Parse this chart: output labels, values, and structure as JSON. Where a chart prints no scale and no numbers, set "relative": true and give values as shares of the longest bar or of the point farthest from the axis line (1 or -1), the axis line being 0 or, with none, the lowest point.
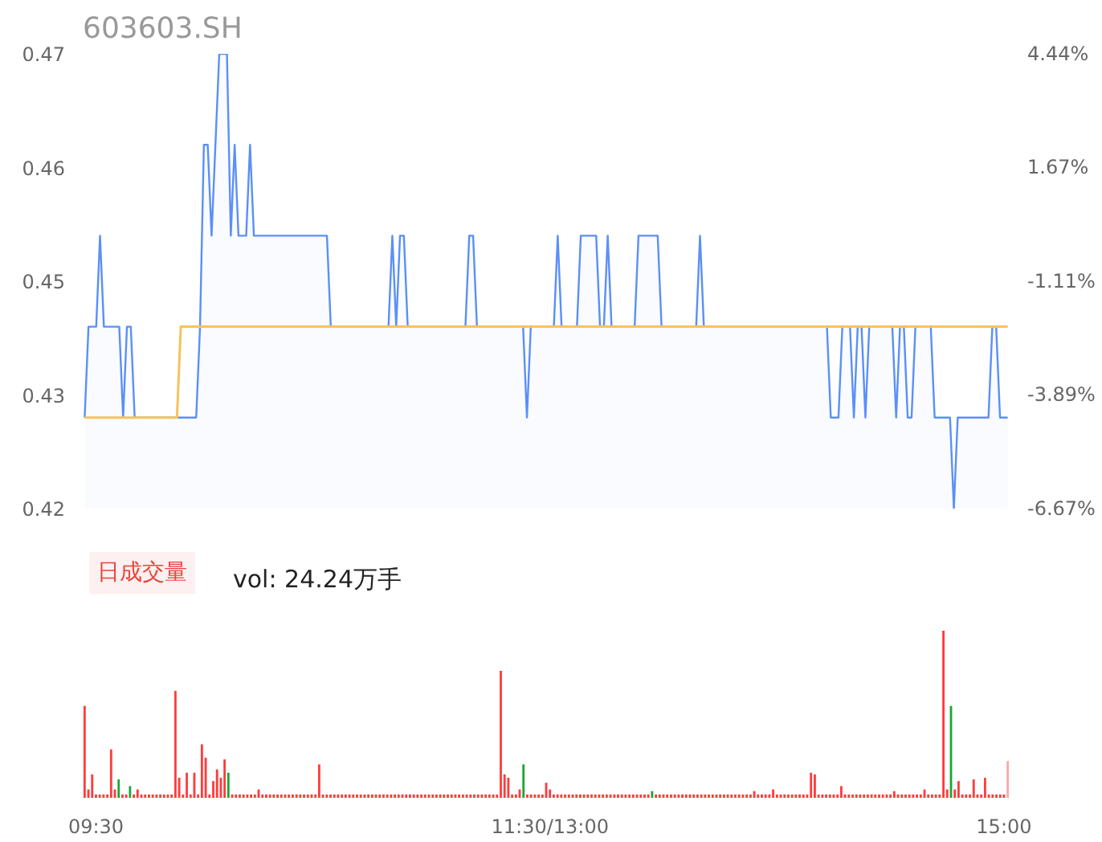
{
  "chart_data": [
    {
      "type": "line",
      "title": "603603.SH",
      "categories": [
        null,
        null,
        null,
        null,
        null,
        null,
        null,
        null,
        null,
        null,
        null,
        null,
        null,
        null,
        null,
        null,
        null,
        null,
        null,
        null,
        null,
        null,
        null,
        null,
        null,
        null,
        null,
        null,
        null,
        null,
        null,
        null,
        null,
        null,
        null,
        null,
        null,
        null,
        null,
        null,
        null,
        null,
        null,
        null,
        null,
        null,
        null,
        null,
        null,
        null,
        null,
        null,
        null,
        null,
        null,
        null,
        null,
        null,
        null,
        null,
        null,
        null,
        null,
        null,
        null,
        null,
        null,
        null,
        null,
        null,
        null,
        null,
        null,
        null,
        null,
        null,
        null,
        null,
        null,
        null,
        null,
        null,
        null,
        null,
        null,
        null,
        null,
        null,
        null,
        null,
        null,
        null,
        null,
        null,
        null,
        null,
        null,
        null,
        null,
        null,
        null,
        null,
        null,
        null,
        null,
        null,
        null,
        null,
        null,
        null,
        null,
        null,
        null,
        null,
        null,
        null,
        null,
        null,
        null,
        null,
        null,
        null,
        null,
        null,
        null,
        null,
        null,
        null,
        null,
        null,
        null,
        null,
        null,
        null,
        null,
        null,
        null,
        null,
        null,
        null,
        null,
        null,
        null,
        null,
        null,
        null,
        null,
        null,
        null,
        null,
        null,
        null,
        null,
        null,
        null,
        null,
        null,
        null,
        null,
        null,
        null,
        null,
        null,
        null,
        null,
        null,
        null,
        null,
        null,
        null,
        null,
        null,
        null,
        null,
        null,
        null,
        null,
        null,
        null,
        null,
        null,
        null,
        null,
        null,
        null,
        null,
        null,
        null,
        null,
        null,
        null,
        null,
        null,
        null,
        null,
        null,
        null,
        null,
        null,
        null,
        null,
        null,
        null,
        null,
        null,
        null,
        null,
        null,
        null,
        null,
        null,
        null,
        null,
        null,
        null,
        null,
        null,
        null,
        null,
        null,
        null,
        null,
        null,
        null,
        null,
        null,
        null,
        null,
        null,
        null,
        null,
        null,
        null,
        null,
        null,
        null,
        null,
        null,
        null,
        null,
        null
      ],
      "ylim": [
        0.42,
        0.47
      ],
      "yticks": [
        0.42,
        {
          "value": 0.4325,
          "label": "0.43"
        },
        {
          "value": 0.445,
          "label": "0.45"
        },
        {
          "value": 0.4575,
          "label": "0.46"
        },
        0.47
      ],
      "y2lim": [
        -6.67,
        4.44
      ],
      "y2ticks": [
        {
          "value": -6.67,
          "label": "-6.67%"
        },
        {
          "value": -3.89,
          "label": "-3.89%"
        },
        {
          "value": -1.11,
          "label": "-1.11%"
        },
        {
          "value": 1.67,
          "label": "1.67%"
        },
        {
          "value": 4.44,
          "label": "4.44%"
        }
      ],
      "grid": false,
      "series": [
        {
          "type": "area",
          "color": "#5b8ff9",
          "values": [
            0.43,
            0.44,
            0.44,
            0.44,
            0.45,
            0.44,
            0.44,
            0.44,
            0.44,
            0.44,
            0.43,
            0.44,
            0.44,
            0.43,
            0.43,
            0.43,
            0.43,
            0.43,
            0.43,
            0.43,
            0.43,
            0.43,
            0.43,
            0.43,
            0.43,
            0.43,
            0.43,
            0.43,
            0.43,
            0.43,
            0.44,
            0.46,
            0.46,
            0.45,
            0.46,
            0.47,
            0.47,
            0.47,
            0.45,
            0.46,
            0.45,
            0.45,
            0.45,
            0.46,
            0.45,
            0.45,
            0.45,
            0.45,
            0.45,
            0.45,
            0.45,
            0.45,
            0.45,
            0.45,
            0.45,
            0.45,
            0.45,
            0.45,
            0.45,
            0.45,
            0.45,
            0.45,
            0.45,
            0.45,
            0.44,
            0.44,
            0.44,
            0.44,
            0.44,
            0.44,
            0.44,
            0.44,
            0.44,
            0.44,
            0.44,
            0.44,
            0.44,
            0.44,
            0.44,
            0.44,
            0.45,
            0.44,
            0.45,
            0.45,
            0.44,
            0.44,
            0.44,
            0.44,
            0.44,
            0.44,
            0.44,
            0.44,
            0.44,
            0.44,
            0.44,
            0.44,
            0.44,
            0.44,
            0.44,
            0.44,
            0.45,
            0.45,
            0.44,
            0.44,
            0.44,
            0.44,
            0.44,
            0.44,
            0.44,
            0.44,
            0.44,
            0.44,
            0.44,
            0.44,
            0.44,
            0.43,
            0.44,
            0.44,
            0.44,
            0.44,
            0.44,
            0.44,
            0.44,
            0.45,
            0.44,
            0.44,
            0.44,
            0.44,
            0.44,
            0.45,
            0.45,
            0.45,
            0.45,
            0.45,
            0.44,
            0.44,
            0.45,
            0.44,
            0.44,
            0.44,
            0.44,
            0.44,
            0.44,
            0.44,
            0.45,
            0.45,
            0.45,
            0.45,
            0.45,
            0.45,
            0.44,
            0.44,
            0.44,
            0.44,
            0.44,
            0.44,
            0.44,
            0.44,
            0.44,
            0.44,
            0.45,
            0.44,
            0.44,
            0.44,
            0.44,
            0.44,
            0.44,
            0.44,
            0.44,
            0.44,
            0.44,
            0.44,
            0.44,
            0.44,
            0.44,
            0.44,
            0.44,
            0.44,
            0.44,
            0.44,
            0.44,
            0.44,
            0.44,
            0.44,
            0.44,
            0.44,
            0.44,
            0.44,
            0.44,
            0.44,
            0.44,
            0.44,
            0.44,
            0.44,
            0.43,
            0.43,
            0.43,
            0.44,
            0.44,
            0.44,
            0.43,
            0.44,
            0.44,
            0.43,
            0.44,
            0.44,
            0.44,
            0.44,
            0.44,
            0.44,
            0.44,
            0.43,
            0.44,
            0.44,
            0.43,
            0.43,
            0.44,
            0.44,
            0.44,
            0.44,
            0.44,
            0.43,
            0.43,
            0.43,
            0.43,
            0.43,
            0.42,
            0.43,
            0.43,
            0.43,
            0.43,
            0.43,
            0.43,
            0.43,
            0.43,
            0.43,
            0.44,
            0.44,
            0.43,
            0.43,
            0.43
          ]
        },
        {
          "type": "line",
          "color": "#f7c25c",
          "values": [
            0.43,
            0.43,
            0.43,
            0.43,
            0.43,
            0.43,
            0.43,
            0.43,
            0.43,
            0.43,
            0.43,
            0.43,
            0.43,
            0.43,
            0.43,
            0.43,
            0.43,
            0.43,
            0.43,
            0.43,
            0.43,
            0.43,
            0.43,
            0.43,
            0.43,
            0.44,
            0.44,
            0.44,
            0.44,
            0.44,
            0.44,
            0.44,
            0.44,
            0.44,
            0.44,
            0.44,
            0.44,
            0.44,
            0.44,
            0.44,
            0.44,
            0.44,
            0.44,
            0.44,
            0.44,
            0.44,
            0.44,
            0.44,
            0.44,
            0.44,
            0.44,
            0.44,
            0.44,
            0.44,
            0.44,
            0.44,
            0.44,
            0.44,
            0.44,
            0.44,
            0.44,
            0.44,
            0.44,
            0.44,
            0.44,
            0.44,
            0.44,
            0.44,
            0.44,
            0.44,
            0.44,
            0.44,
            0.44,
            0.44,
            0.44,
            0.44,
            0.44,
            0.44,
            0.44,
            0.44,
            0.44,
            0.44,
            0.44,
            0.44,
            0.44,
            0.44,
            0.44,
            0.44,
            0.44,
            0.44,
            0.44,
            0.44,
            0.44,
            0.44,
            0.44,
            0.44,
            0.44,
            0.44,
            0.44,
            0.44,
            0.44,
            0.44,
            0.44,
            0.44,
            0.44,
            0.44,
            0.44,
            0.44,
            0.44,
            0.44,
            0.44,
            0.44,
            0.44,
            0.44,
            0.44,
            0.44,
            0.44,
            0.44,
            0.44,
            0.44,
            0.44,
            0.44,
            0.44,
            0.44,
            0.44,
            0.44,
            0.44,
            0.44,
            0.44,
            0.44,
            0.44,
            0.44,
            0.44,
            0.44,
            0.44,
            0.44,
            0.44,
            0.44,
            0.44,
            0.44,
            0.44,
            0.44,
            0.44,
            0.44,
            0.44,
            0.44,
            0.44,
            0.44,
            0.44,
            0.44,
            0.44,
            0.44,
            0.44,
            0.44,
            0.44,
            0.44,
            0.44,
            0.44,
            0.44,
            0.44,
            0.44,
            0.44,
            0.44,
            0.44,
            0.44,
            0.44,
            0.44,
            0.44,
            0.44,
            0.44,
            0.44,
            0.44,
            0.44,
            0.44,
            0.44,
            0.44,
            0.44,
            0.44,
            0.44,
            0.44,
            0.44,
            0.44,
            0.44,
            0.44,
            0.44,
            0.44,
            0.44,
            0.44,
            0.44,
            0.44,
            0.44,
            0.44,
            0.44,
            0.44,
            0.44,
            0.44,
            0.44,
            0.44,
            0.44,
            0.44,
            0.44,
            0.44,
            0.44,
            0.44,
            0.44,
            0.44,
            0.44,
            0.44,
            0.44,
            0.44,
            0.44,
            0.44,
            0.44,
            0.44,
            0.44,
            0.44,
            0.44,
            0.44,
            0.44,
            0.44,
            0.44,
            0.44,
            0.44,
            0.44,
            0.44,
            0.44,
            0.44,
            0.44,
            0.44,
            0.44,
            0.44,
            0.44,
            0.44,
            0.44,
            0.44,
            0.44,
            0.44,
            0.44,
            0.44,
            0.44,
            0.44
          ]
        }
      ]
    },
    {
      "type": "bar",
      "title": "日成交量",
      "subtitle": "vol: 24.24万手",
      "relative": true,
      "grid": false,
      "categories": [
        null,
        null,
        null,
        "09:30",
        null,
        null,
        null,
        null,
        null,
        null,
        null,
        null,
        null,
        null,
        null,
        null,
        null,
        null,
        null,
        null,
        null,
        null,
        null,
        null,
        null,
        null,
        null,
        null,
        null,
        null,
        null,
        null,
        null,
        null,
        null,
        null,
        null,
        null,
        null,
        null,
        null,
        null,
        null,
        null,
        null,
        null,
        null,
        null,
        null,
        null,
        null,
        null,
        null,
        null,
        null,
        null,
        null,
        null,
        null,
        null,
        null,
        null,
        null,
        null,
        null,
        null,
        null,
        null,
        null,
        null,
        null,
        null,
        null,
        null,
        null,
        null,
        null,
        null,
        null,
        null,
        null,
        null,
        null,
        null,
        null,
        null,
        null,
        null,
        null,
        null,
        null,
        null,
        null,
        null,
        null,
        null,
        null,
        null,
        null,
        null,
        null,
        null,
        null,
        null,
        null,
        null,
        null,
        null,
        null,
        null,
        null,
        null,
        null,
        null,
        null,
        null,
        null,
        null,
        null,
        null,
        null,
        null,
        null,
        "11:30/13:00",
        null,
        null,
        null,
        null,
        null,
        null,
        null,
        null,
        null,
        null,
        null,
        null,
        null,
        null,
        null,
        null,
        null,
        null,
        null,
        null,
        null,
        null,
        null,
        null,
        null,
        null,
        null,
        null,
        null,
        null,
        null,
        null,
        null,
        null,
        null,
        null,
        null,
        null,
        null,
        null,
        null,
        null,
        null,
        null,
        null,
        null,
        null,
        null,
        null,
        null,
        null,
        null,
        null,
        null,
        null,
        null,
        null,
        null,
        null,
        null,
        null,
        null,
        null,
        null,
        null,
        null,
        null,
        null,
        null,
        null,
        null,
        null,
        null,
        null,
        null,
        null,
        null,
        null,
        null,
        null,
        null,
        null,
        null,
        null,
        null,
        null,
        null,
        null,
        null,
        null,
        null,
        null,
        null,
        null,
        null,
        null,
        null,
        null,
        null,
        null,
        null,
        null,
        null,
        null,
        null,
        null,
        null,
        null,
        null,
        null,
        null,
        null,
        null,
        null,
        null,
        null,
        null,
        null,
        null,
        "15:00",
        null
      ],
      "values": [
        0.55,
        0.05,
        0.14,
        0.02,
        0.02,
        0.02,
        0.02,
        0.29,
        0.05,
        0.11,
        0.02,
        0.02,
        0.07,
        0.02,
        0.05,
        0.02,
        0.02,
        0.02,
        0.02,
        0.02,
        0.02,
        0.02,
        0.02,
        0.02,
        0.64,
        0.12,
        0.02,
        0.15,
        0.02,
        0.15,
        0.02,
        0.32,
        0.24,
        0.02,
        0.1,
        0.17,
        0.12,
        0.23,
        0.15,
        0.02,
        0.02,
        0.02,
        0.02,
        0.02,
        0.02,
        0.02,
        0.05,
        0.02,
        0.02,
        0.02,
        0.02,
        0.02,
        0.02,
        0.02,
        0.02,
        0.02,
        0.02,
        0.02,
        0.02,
        0.02,
        0.02,
        0.02,
        0.2,
        0.02,
        0.02,
        0.02,
        0.02,
        0.02,
        0.02,
        0.02,
        0.02,
        0.02,
        0.02,
        0.02,
        0.02,
        0.02,
        0.02,
        0.02,
        0.02,
        0.02,
        0.02,
        0.02,
        0.02,
        0.02,
        0.02,
        0.02,
        0.02,
        0.02,
        0.02,
        0.02,
        0.02,
        0.02,
        0.02,
        0.02,
        0.02,
        0.02,
        0.02,
        0.02,
        0.02,
        0.02,
        0.02,
        0.02,
        0.02,
        0.02,
        0.02,
        0.02,
        0.02,
        0.02,
        0.02,
        0.02,
        0.76,
        0.14,
        0.12,
        0.02,
        0.02,
        0.05,
        0.2,
        0.02,
        0.02,
        0.02,
        0.02,
        0.02,
        0.09,
        0.05,
        0.02,
        0.02,
        0.02,
        0.02,
        0.02,
        0.02,
        0.02,
        0.02,
        0.02,
        0.02,
        0.02,
        0.02,
        0.02,
        0.02,
        0.02,
        0.02,
        0.02,
        0.02,
        0.02,
        0.02,
        0.02,
        0.02,
        0.02,
        0.02,
        0.02,
        0.02,
        0.04,
        0.02,
        0.02,
        0.02,
        0.02,
        0.02,
        0.02,
        0.02,
        0.02,
        0.02,
        0.02,
        0.02,
        0.02,
        0.02,
        0.02,
        0.02,
        0.02,
        0.02,
        0.02,
        0.02,
        0.02,
        0.02,
        0.02,
        0.02,
        0.02,
        0.02,
        0.02,
        0.04,
        0.02,
        0.02,
        0.02,
        0.02,
        0.05,
        0.02,
        0.02,
        0.02,
        0.02,
        0.02,
        0.02,
        0.02,
        0.02,
        0.02,
        0.15,
        0.14,
        0.02,
        0.02,
        0.02,
        0.02,
        0.02,
        0.02,
        0.07,
        0.02,
        0.02,
        0.02,
        0.02,
        0.02,
        0.02,
        0.02,
        0.02,
        0.02,
        0.02,
        0.02,
        0.02,
        0.02,
        0.04,
        0.02,
        0.02,
        0.02,
        0.02,
        0.02,
        0.02,
        0.02,
        0.05,
        0.02,
        0.02,
        0.02,
        0.02,
        1,
        0.05,
        0.55,
        0.05,
        0.1,
        0.02,
        0.02,
        0.02,
        0.11,
        0.02,
        0.02,
        0.12,
        0.02,
        0.02,
        0.02,
        0.02,
        0.02,
        0.22
      ],
      "colors": [
        "#ff3b3b",
        "#ff3b3b",
        "#ff3b3b",
        "#ff3b3b",
        "#ff3b3b",
        "#ff3b3b",
        "#ff3b3b",
        "#ff3b3b",
        "#ff3b3b",
        "#1aa636",
        "#ff3b3b",
        "#ff3b3b",
        "#1aa636",
        "#ff3b3b",
        "#ff3b3b",
        "#ff3b3b",
        "#ff3b3b",
        "#ff3b3b",
        "#ff3b3b",
        "#ff3b3b",
        "#ff3b3b",
        "#ff3b3b",
        "#ff3b3b",
        "#ff3b3b",
        "#ff3b3b",
        "#ff3b3b",
        "#ff3b3b",
        "#ff3b3b",
        "#ff3b3b",
        "#ff3b3b",
        "#ff3b3b",
        "#ff3b3b",
        "#ff3b3b",
        "#ff3b3b",
        "#ff3b3b",
        "#ff3b3b",
        "#ff3b3b",
        "#ff3b3b",
        "#1aa636",
        "#ff3b3b",
        "#ff3b3b",
        "#ff3b3b",
        "#ff3b3b",
        "#ff3b3b",
        "#ff3b3b",
        "#ff3b3b",
        "#ff3b3b",
        "#ff3b3b",
        "#ff3b3b",
        "#ff3b3b",
        "#ff3b3b",
        "#ff3b3b",
        "#ff3b3b",
        "#ff3b3b",
        "#ff3b3b",
        "#ff3b3b",
        "#ff3b3b",
        "#ff3b3b",
        "#ff3b3b",
        "#ff3b3b",
        "#ff3b3b",
        "#ff3b3b",
        "#ff3b3b",
        "#ff3b3b",
        "#ff3b3b",
        "#ff3b3b",
        "#ff3b3b",
        "#ff3b3b",
        "#ff3b3b",
        "#ff3b3b",
        "#ff3b3b",
        "#ff3b3b",
        "#ff3b3b",
        "#ff3b3b",
        "#ff3b3b",
        "#ff3b3b",
        "#ff3b3b",
        "#ff3b3b",
        "#ff3b3b",
        "#ff3b3b",
        "#ff3b3b",
        "#ff3b3b",
        "#ff3b3b",
        "#ff3b3b",
        "#ff3b3b",
        "#ff3b3b",
        "#ff3b3b",
        "#ff3b3b",
        "#ff3b3b",
        "#ff3b3b",
        "#ff3b3b",
        "#ff3b3b",
        "#ff3b3b",
        "#ff3b3b",
        "#ff3b3b",
        "#ff3b3b",
        "#ff3b3b",
        "#ff3b3b",
        "#ff3b3b",
        "#ff3b3b",
        "#ff3b3b",
        "#ff3b3b",
        "#ff3b3b",
        "#ff3b3b",
        "#ff3b3b",
        "#ff3b3b",
        "#ff3b3b",
        "#ff3b3b",
        "#ff3b3b",
        "#ff3b3b",
        "#ff3b3b",
        "#ff3b3b",
        "#ff3b3b",
        "#ff3b3b",
        "#ff3b3b",
        "#ff3b3b",
        "#1aa636",
        "#ff3b3b",
        "#ff3b3b",
        "#ff3b3b",
        "#ff3b3b",
        "#ff3b3b",
        "#ff3b3b",
        "#ff3b3b",
        "#ff3b3b",
        "#ff3b3b",
        "#ff3b3b",
        "#ff3b3b",
        "#ff3b3b",
        "#ff3b3b",
        "#ff3b3b",
        "#ff3b3b",
        "#ff3b3b",
        "#ff3b3b",
        "#ff3b3b",
        "#ff3b3b",
        "#ff3b3b",
        "#ff3b3b",
        "#ff3b3b",
        "#ff3b3b",
        "#ff3b3b",
        "#ff3b3b",
        "#ff3b3b",
        "#ff3b3b",
        "#ff3b3b",
        "#ff3b3b",
        "#ff3b3b",
        "#ff3b3b",
        "#ff3b3b",
        "#ff3b3b",
        "#1aa636",
        "#ff3b3b",
        "#ff3b3b",
        "#ff3b3b",
        "#ff3b3b",
        "#ff3b3b",
        "#ff3b3b",
        "#ff3b3b",
        "#ff3b3b",
        "#ff3b3b",
        "#ff3b3b",
        "#ff3b3b",
        "#ff3b3b",
        "#ff3b3b",
        "#ff3b3b",
        "#ff3b3b",
        "#ff3b3b",
        "#ff3b3b",
        "#ff3b3b",
        "#ff3b3b",
        "#ff3b3b",
        "#ff3b3b",
        "#ff3b3b",
        "#ff3b3b",
        "#ff3b3b",
        "#ff3b3b",
        "#ff3b3b",
        "#ff3b3b",
        "#ff3b3b",
        "#ff3b3b",
        "#ff3b3b",
        "#ff3b3b",
        "#ff3b3b",
        "#ff3b3b",
        "#ff3b3b",
        "#ff3b3b",
        "#ff3b3b",
        "#ff3b3b",
        "#ff3b3b",
        "#ff3b3b",
        "#ff3b3b",
        "#ff3b3b",
        "#ff3b3b",
        "#ff3b3b",
        "#ff3b3b",
        "#ff3b3b",
        "#ff3b3b",
        "#ff3b3b",
        "#ff3b3b",
        "#ff3b3b",
        "#ff3b3b",
        "#ff3b3b",
        "#ff3b3b",
        "#ff3b3b",
        "#ff3b3b",
        "#ff3b3b",
        "#ff3b3b",
        "#ff3b3b",
        "#ff3b3b",
        "#ff3b3b",
        "#ff3b3b",
        "#ff3b3b",
        "#ff3b3b",
        "#ff3b3b",
        "#ff3b3b",
        "#ff3b3b",
        "#ff3b3b",
        "#ff3b3b",
        "#ff3b3b",
        "#ff3b3b",
        "#ff3b3b",
        "#ff3b3b",
        "#ff3b3b",
        "#ff3b3b",
        "#ff3b3b",
        "#ff3b3b",
        "#ff3b3b",
        "#ff3b3b",
        "#ff3b3b",
        "#1aa636",
        "#ff3b3b",
        "#ff3b3b",
        "#ff3b3b",
        "#ff3b3b",
        "#ff3b3b",
        "#ff3b3b",
        "#ff3b3b",
        "#ff3b3b",
        "#ff3b3b",
        "#ff3b3b",
        "#ff3b3b",
        "#ff3b3b",
        "#ff3b3b",
        "#ff3b3b",
        "#ffa5a5"
      ]
    }
  ]
}
